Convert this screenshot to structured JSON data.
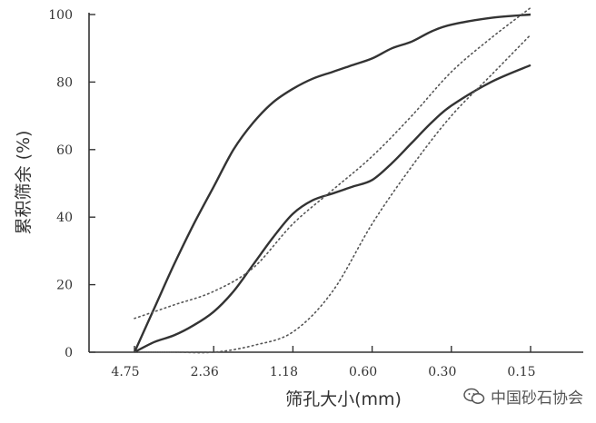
{
  "chart_data": {
    "type": "line",
    "categories": [
      "4.75",
      "2.36",
      "1.18",
      "0.60",
      "0.30",
      "0.15"
    ],
    "xlabel": "筛孔大小(mm)",
    "ylabel": "累积筛余 (%)",
    "ylim": [
      0,
      100
    ],
    "yticks": [
      "0",
      "20",
      "40",
      "60",
      "80",
      "100"
    ],
    "grid": false,
    "series": [
      {
        "style": "solid",
        "color": "#333333",
        "points": [
          [
            0,
            0
          ],
          [
            0.25,
            13
          ],
          [
            0.5,
            26
          ],
          [
            0.75,
            38
          ],
          [
            1,
            49
          ],
          [
            1.25,
            60
          ],
          [
            1.5,
            68
          ],
          [
            1.75,
            74
          ],
          [
            2,
            78
          ],
          [
            2.25,
            81
          ],
          [
            2.5,
            83
          ],
          [
            2.75,
            85
          ],
          [
            3,
            87
          ],
          [
            3.25,
            90
          ],
          [
            3.5,
            92
          ],
          [
            3.75,
            95
          ],
          [
            4,
            97
          ],
          [
            4.5,
            99
          ],
          [
            5,
            100
          ]
        ]
      },
      {
        "style": "solid",
        "color": "#333333",
        "points": [
          [
            0,
            0
          ],
          [
            0.25,
            3
          ],
          [
            0.5,
            5
          ],
          [
            0.75,
            8
          ],
          [
            1,
            12
          ],
          [
            1.25,
            18
          ],
          [
            1.5,
            26
          ],
          [
            1.75,
            34
          ],
          [
            2,
            41
          ],
          [
            2.25,
            45
          ],
          [
            2.5,
            47
          ],
          [
            2.75,
            49
          ],
          [
            3,
            51
          ],
          [
            3.25,
            56
          ],
          [
            3.5,
            62
          ],
          [
            3.75,
            68
          ],
          [
            4,
            73
          ],
          [
            4.5,
            80
          ],
          [
            5,
            85
          ]
        ]
      },
      {
        "style": "dotted",
        "color": "#555555",
        "points": [
          [
            0,
            10
          ],
          [
            0.5,
            14
          ],
          [
            1,
            18
          ],
          [
            1.5,
            25
          ],
          [
            2,
            38
          ],
          [
            2.5,
            48
          ],
          [
            3,
            58
          ],
          [
            3.5,
            70
          ],
          [
            4,
            83
          ],
          [
            4.5,
            93
          ],
          [
            5,
            102
          ]
        ]
      },
      {
        "style": "dotted",
        "color": "#555555",
        "points": [
          [
            0,
            0
          ],
          [
            0.5,
            0
          ],
          [
            1,
            0
          ],
          [
            1.5,
            2
          ],
          [
            2,
            6
          ],
          [
            2.5,
            18
          ],
          [
            3,
            38
          ],
          [
            3.5,
            55
          ],
          [
            4,
            70
          ],
          [
            4.5,
            82
          ],
          [
            5,
            94
          ]
        ]
      }
    ]
  },
  "watermark": {
    "icon": "wechat-icon",
    "text": "中国砂石协会"
  }
}
